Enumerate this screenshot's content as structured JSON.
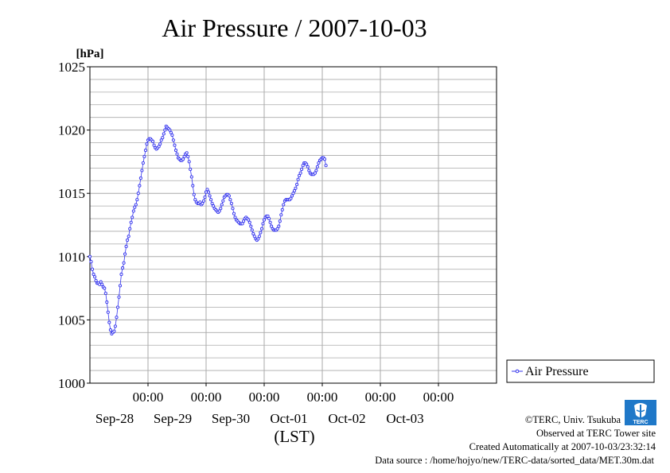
{
  "title": "Air Pressure / 2007-10-03",
  "footer": {
    "copyright": "©TERC, Univ. Tsukuba",
    "observed": "Observed at TERC Tower site",
    "created": "Created Automatically at 2007-10-03/23:32:14",
    "source": "Data source : /home/hojyo/new/TERC-data/sorted_data/MET.30m.dat"
  },
  "logo": {
    "text": "TERC"
  },
  "colors": {
    "series": "#3333ee",
    "grid": "#aaaaaa",
    "axis": "#000000"
  },
  "chart_data": {
    "type": "line",
    "title": "Air Pressure / 2007-10-03",
    "ylabel": "[hPa]",
    "xlabel": "(LST)",
    "ylim": [
      1000,
      1025
    ],
    "yticks": [
      1000,
      1005,
      1010,
      1015,
      1020,
      1025
    ],
    "xlim_days_sep27": [
      0.0,
      7.0
    ],
    "xticks": [
      {
        "time": "00:00",
        "date": "Sep-28"
      },
      {
        "time": "00:00",
        "date": "Sep-29"
      },
      {
        "time": "00:00",
        "date": "Sep-30"
      },
      {
        "time": "00:00",
        "date": "Oct-01"
      },
      {
        "time": "00:00",
        "date": "Oct-02"
      },
      {
        "time": "00:00",
        "date": "Oct-03"
      }
    ],
    "grid": true,
    "legend": "right",
    "series": [
      {
        "name": "Air Pressure",
        "x_start": "2007-09-27 00:00",
        "interval": "30min",
        "values": [
          1010.0,
          1009.6,
          1009.0,
          1008.6,
          1008.4,
          1008.1,
          1007.9,
          1007.9,
          1007.8,
          1008.0,
          1007.8,
          1007.6,
          1007.5,
          1007.1,
          1006.4,
          1005.6,
          1004.8,
          1004.2,
          1003.9,
          1004.0,
          1004.1,
          1004.5,
          1005.2,
          1006.0,
          1006.8,
          1007.7,
          1008.6,
          1009.1,
          1009.5,
          1010.2,
          1010.8,
          1011.3,
          1011.6,
          1012.2,
          1012.7,
          1013.1,
          1013.6,
          1013.9,
          1014.1,
          1014.5,
          1015.0,
          1015.6,
          1016.2,
          1016.8,
          1017.4,
          1017.9,
          1018.4,
          1018.9,
          1019.2,
          1019.3,
          1019.3,
          1019.2,
          1019.1,
          1018.8,
          1018.6,
          1018.5,
          1018.6,
          1018.7,
          1018.9,
          1019.2,
          1019.4,
          1019.7,
          1020.0,
          1020.3,
          1020.2,
          1020.1,
          1020.0,
          1019.8,
          1019.6,
          1019.2,
          1018.8,
          1018.4,
          1018.1,
          1017.8,
          1017.7,
          1017.6,
          1017.6,
          1017.7,
          1017.9,
          1018.1,
          1018.2,
          1017.9,
          1017.5,
          1016.9,
          1016.3,
          1015.6,
          1014.9,
          1014.5,
          1014.3,
          1014.2,
          1014.2,
          1014.3,
          1014.1,
          1014.2,
          1014.4,
          1014.7,
          1015.1,
          1015.3,
          1015.1,
          1014.8,
          1014.5,
          1014.2,
          1014.0,
          1013.8,
          1013.7,
          1013.6,
          1013.5,
          1013.6,
          1013.8,
          1014.1,
          1014.4,
          1014.7,
          1014.8,
          1014.9,
          1014.9,
          1014.8,
          1014.5,
          1014.2,
          1013.8,
          1013.4,
          1013.1,
          1012.9,
          1012.8,
          1012.7,
          1012.6,
          1012.6,
          1012.6,
          1012.8,
          1013.0,
          1013.1,
          1013.0,
          1012.9,
          1012.7,
          1012.4,
          1012.1,
          1011.8,
          1011.6,
          1011.4,
          1011.3,
          1011.4,
          1011.6,
          1011.9,
          1012.2,
          1012.6,
          1012.9,
          1013.1,
          1013.2,
          1013.2,
          1013.0,
          1012.7,
          1012.4,
          1012.2,
          1012.1,
          1012.1,
          1012.1,
          1012.2,
          1012.4,
          1012.8,
          1013.3,
          1013.7,
          1014.1,
          1014.4,
          1014.5,
          1014.5,
          1014.5,
          1014.5,
          1014.6,
          1014.8,
          1015.0,
          1015.2,
          1015.4,
          1015.7,
          1016.1,
          1016.4,
          1016.6,
          1016.9,
          1017.2,
          1017.4,
          1017.4,
          1017.3,
          1017.1,
          1016.8,
          1016.6,
          1016.5,
          1016.5,
          1016.5,
          1016.6,
          1016.8,
          1017.1,
          1017.4,
          1017.6,
          1017.7,
          1017.8,
          1017.8,
          1017.7,
          1017.2
        ]
      }
    ]
  }
}
